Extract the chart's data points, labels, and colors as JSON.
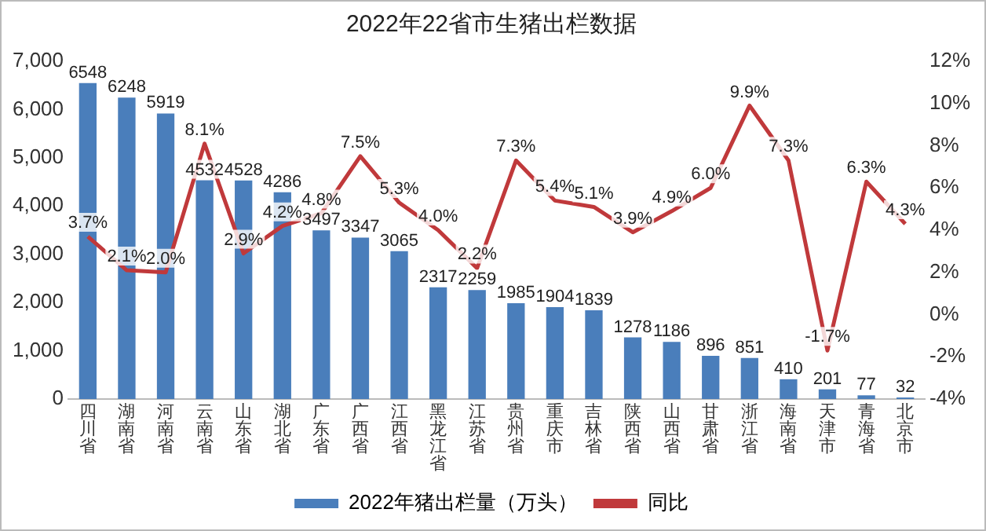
{
  "chart_data": {
    "type": "bar",
    "title": "2022年22省市生猪出栏数据",
    "categories": [
      "四川省",
      "湖南省",
      "河南省",
      "云南省",
      "山东省",
      "湖北省",
      "广东省",
      "广西省",
      "江西省",
      "黑龙江省",
      "江苏省",
      "贵州省",
      "重庆市",
      "吉林省",
      "陕西省",
      "山西省",
      "甘肃省",
      "浙江省",
      "海南省",
      "天津市",
      "青海省",
      "北京市"
    ],
    "series": [
      {
        "name": "2022年猪出栏量（万头）",
        "color": "#4a7ebb",
        "values": [
          6548,
          6248,
          5919,
          4532,
          4528,
          4286,
          3497,
          3347,
          3065,
          2317,
          2259,
          1985,
          1904,
          1839,
          1278,
          1186,
          896,
          851,
          410,
          201,
          77,
          32
        ],
        "value_labels": [
          "6548",
          "6248",
          "5919",
          "4532",
          "4528",
          "4286",
          "3497",
          "3347",
          "3065",
          "2317",
          "2259",
          "1985",
          "1904",
          "1839",
          "1278",
          "1186",
          "896",
          "851",
          "410",
          "201",
          "77",
          "32"
        ]
      },
      {
        "name": "同比",
        "type": "line",
        "axis": "y2",
        "color": "#c0393b",
        "values": [
          3.7,
          2.1,
          2.0,
          8.1,
          2.9,
          4.2,
          4.8,
          7.5,
          5.3,
          4.0,
          2.2,
          7.3,
          5.4,
          5.1,
          3.9,
          4.9,
          6.0,
          9.9,
          7.3,
          -1.7,
          6.3,
          4.3
        ],
        "value_labels": [
          "3.7%",
          "2.1%",
          "2.0%",
          "8.1%",
          "2.9%",
          "4.2%",
          "4.8%",
          "7.5%",
          "5.3%",
          "4.0%",
          "2.2%",
          "7.3%",
          "5.4%",
          "5.1%",
          "3.9%",
          "4.9%",
          "6.0%",
          "9.9%",
          "7.3%",
          "-1.7%",
          "6.3%",
          "4.3%"
        ]
      }
    ],
    "ylim": [
      0,
      7000
    ],
    "yticks": [
      0,
      {
        "value": 1000,
        "label": "1,000"
      },
      {
        "value": 2000,
        "label": "2,000"
      },
      {
        "value": 3000,
        "label": "3,000"
      },
      {
        "value": 4000,
        "label": "4,000"
      },
      {
        "value": 5000,
        "label": "5,000"
      },
      {
        "value": 6000,
        "label": "6,000"
      },
      {
        "value": 7000,
        "label": "7,000"
      }
    ],
    "y2lim": [
      -4,
      12
    ],
    "y2ticks": [
      {
        "value": -4,
        "label": "-4%"
      },
      {
        "value": -2,
        "label": "-2%"
      },
      {
        "value": 0,
        "label": "0%"
      },
      {
        "value": 2,
        "label": "2%"
      },
      {
        "value": 4,
        "label": "4%"
      },
      {
        "value": 6,
        "label": "6%"
      },
      {
        "value": 8,
        "label": "8%"
      },
      {
        "value": 10,
        "label": "10%"
      },
      {
        "value": 12,
        "label": "12%"
      }
    ],
    "grid": false,
    "legend": "bottom",
    "marker": "none",
    "line_style": "solid"
  }
}
